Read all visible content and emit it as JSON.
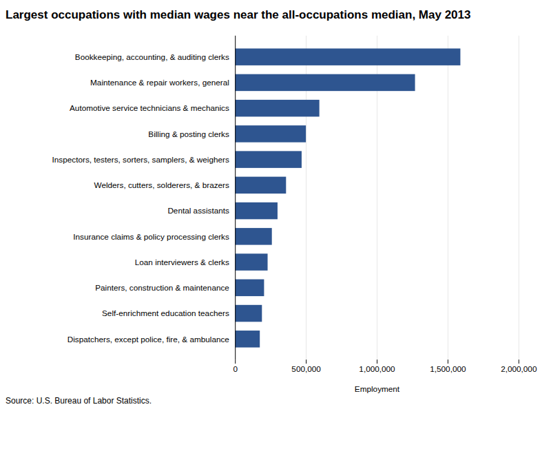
{
  "chart_data": {
    "type": "bar",
    "title": "Largest occupations with median wages near the all-occupations median, May 2013",
    "orientation": "horizontal",
    "categories": [
      "Dispatchers, except police, fire, & ambulance",
      "Self-enrichment education teachers",
      "Painters, construction & maintenance",
      "Loan interviewers & clerks",
      "Insurance claims & policy processing clerks",
      "Dental assistants",
      "Welders, cutters, solderers, & brazers",
      "Inspectors, testers, sorters, samplers, & weighers",
      "Billing & posting clerks",
      "Automotive service technicians & mechanics",
      "Maintenance & repair workers, general",
      "Bookkeeping, accounting, & auditing clerks"
    ],
    "values": [
      175000,
      190000,
      205000,
      230000,
      260000,
      300000,
      360000,
      470000,
      500000,
      595000,
      1270000,
      1590000
    ],
    "color": "#2e5590",
    "xlabel": "Employment",
    "xlim": [
      0,
      2000000
    ],
    "xticks": [
      0,
      {
        "value": 500000,
        "label": "500,000"
      },
      {
        "value": 1000000,
        "label": "1,000,000"
      },
      {
        "value": 1500000,
        "label": "1,500,000"
      },
      {
        "value": 2000000,
        "label": "2,000,000"
      }
    ],
    "grid": true,
    "source": "Source: U.S. Bureau of Labor Statistics."
  }
}
